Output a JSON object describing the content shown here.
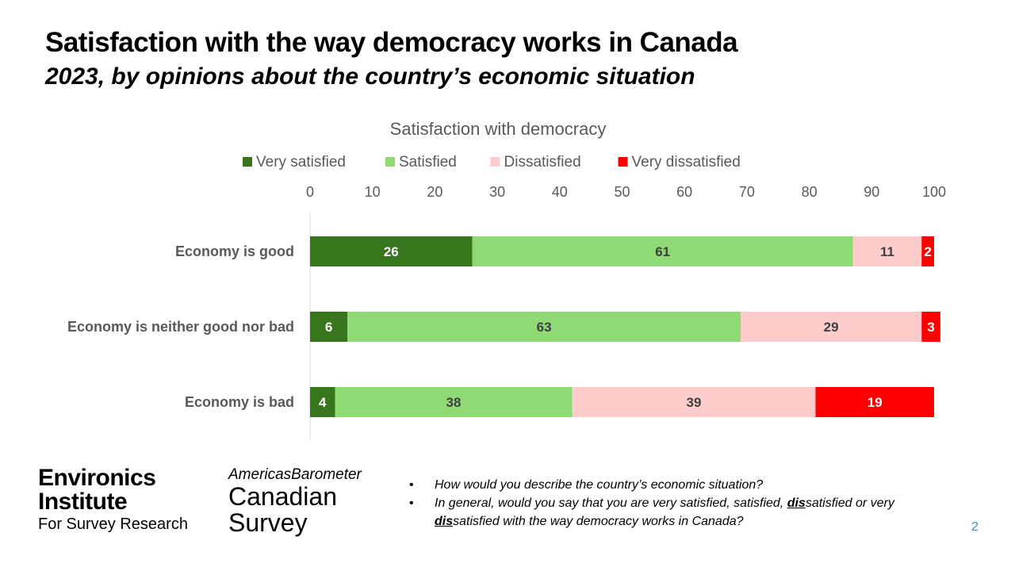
{
  "title": "Satisfaction with the way democracy works in Canada",
  "subtitle": "2023, by opinions about the country’s economic situation",
  "chart_data": {
    "type": "bar",
    "orientation": "horizontal",
    "stacked": true,
    "title": "Satisfaction with democracy",
    "legend_position": "top",
    "categories": [
      "Economy is good",
      "Economy is neither good nor bad",
      "Economy is bad"
    ],
    "series": [
      {
        "name": "Very satisfied",
        "color": "#38761d",
        "values": [
          26,
          6,
          4
        ]
      },
      {
        "name": "Satisfied",
        "color": "#8fda74",
        "values": [
          61,
          63,
          38
        ]
      },
      {
        "name": "Dissatisfied",
        "color": "#ffcccc",
        "values": [
          11,
          29,
          39
        ]
      },
      {
        "name": "Very dissatisfied",
        "color": "#ff0000",
        "values": [
          2,
          3,
          19
        ]
      }
    ],
    "xlim": [
      0,
      100
    ],
    "xticks": [
      "0",
      "10",
      "20",
      "30",
      "40",
      "50",
      "60",
      "70",
      "80",
      "90",
      "100"
    ],
    "xaxis_position": "top",
    "grid": false
  },
  "logos": {
    "environics_line1": "Environics",
    "environics_line2": "Institute",
    "environics_line3": "For Survey Research",
    "americas_line1": "AmericasBarometer",
    "americas_line2": "Canadian",
    "americas_line3": "Survey"
  },
  "notes": {
    "q1": "How would you describe the country’s economic situation?",
    "q2_part1": "In general, would you say that you are very satisfied, satisfied, ",
    "q2_dis1": "dis",
    "q2_part2": "satisfied or very ",
    "q2_dis2": "dis",
    "q2_part3": "satisfied with the way democracy works in Canada?"
  },
  "page_number": "2"
}
